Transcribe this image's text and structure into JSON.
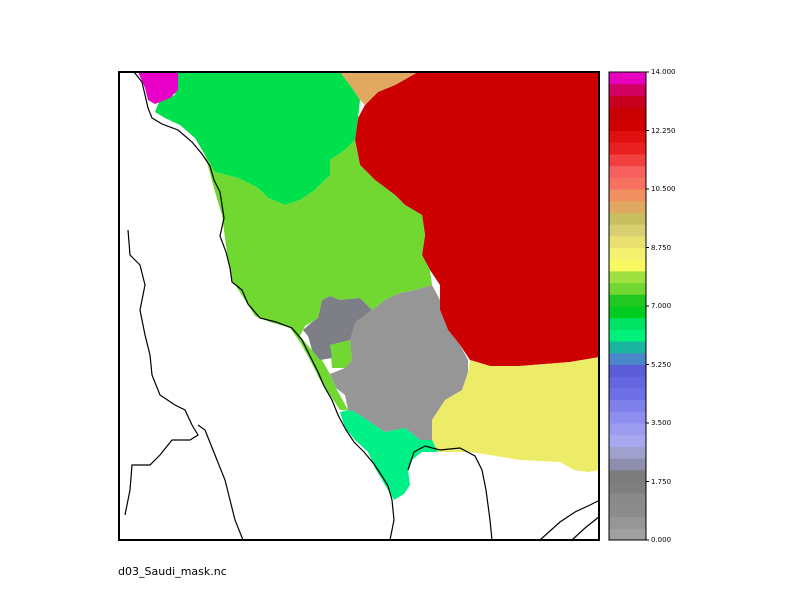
{
  "filename": "d03_Saudi_mask.nc",
  "colorbar": {
    "min": 0.0,
    "max": 14.0,
    "tick_labels": [
      "14.000",
      "12.250",
      "10.500",
      "8.750",
      "7.000",
      "5.250",
      "3.500",
      "1.750",
      "0.000"
    ],
    "colors": [
      "#a0a0a0",
      "#969696",
      "#8c8c8c",
      "#8a8a8a",
      "#7f7f7f",
      "#7c7c7c",
      "#8e8eae",
      "#a0a0cf",
      "#a8a8f0",
      "#9c9cf0",
      "#8e8ef0",
      "#8080ec",
      "#7070e6",
      "#6666e0",
      "#5c5cd8",
      "#4a86c8",
      "#1ab4a0",
      "#00f07a",
      "#00e264",
      "#00cc20",
      "#20c820",
      "#70d830",
      "#a0e040",
      "#f8f860",
      "#f4f070",
      "#e8e070",
      "#d8d070",
      "#c8c060",
      "#e0a860",
      "#f09060",
      "#f87060",
      "#f86060",
      "#f04040",
      "#e82020",
      "#e01010",
      "#d00000",
      "#c80000",
      "#c80020",
      "#d00060",
      "#e800c0"
    ]
  },
  "regions": [
    {
      "name": "red-region",
      "value": 12.0,
      "color": "#cc0000"
    },
    {
      "name": "green-region",
      "value": 7.2,
      "color": "#00e04c"
    },
    {
      "name": "lightgreen-region",
      "value": 8.0,
      "color": "#70d830"
    },
    {
      "name": "yellow-region",
      "value": 9.0,
      "color": "#ecec68"
    },
    {
      "name": "gray-region",
      "value": 0.6,
      "color": "#969696"
    },
    {
      "name": "darkgray-region",
      "value": 1.5,
      "color": "#7e7e86"
    },
    {
      "name": "teal-region",
      "value": 6.6,
      "color": "#00f088"
    },
    {
      "name": "magenta-region",
      "value": 14.0,
      "color": "#e800c8"
    },
    {
      "name": "orange-region",
      "value": 11.2,
      "color": "#e0a860"
    }
  ]
}
